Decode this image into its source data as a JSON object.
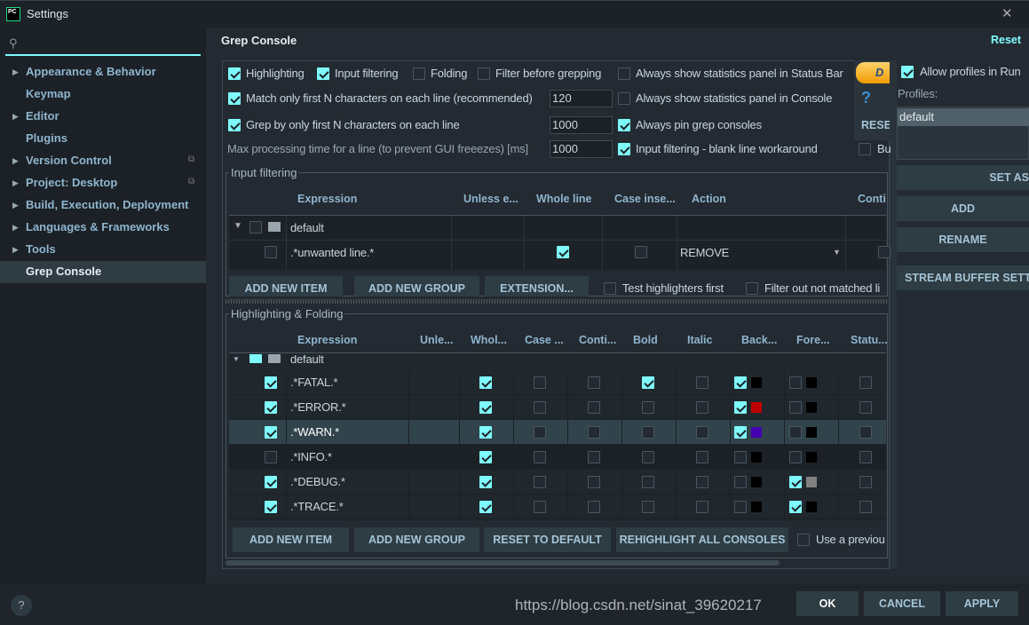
{
  "window": {
    "title": "Settings",
    "close": "✕"
  },
  "search": {
    "placeholder": ""
  },
  "sidebar": {
    "items": [
      {
        "label": "Appearance & Behavior",
        "arrow": true
      },
      {
        "label": "Keymap",
        "arrow": false
      },
      {
        "label": "Editor",
        "arrow": true
      },
      {
        "label": "Plugins",
        "arrow": false
      },
      {
        "label": "Version Control",
        "arrow": true,
        "copy": true
      },
      {
        "label": "Project: Desktop",
        "arrow": true,
        "copy": true
      },
      {
        "label": "Build, Execution, Deployment",
        "arrow": true
      },
      {
        "label": "Languages & Frameworks",
        "arrow": true
      },
      {
        "label": "Tools",
        "arrow": true
      },
      {
        "label": "Grep Console",
        "arrow": false,
        "selected": true
      }
    ]
  },
  "header": {
    "title": "Grep Console",
    "reset": "Reset"
  },
  "options": {
    "highlighting": "Highlighting",
    "input_filtering": "Input filtering",
    "folding": "Folding",
    "filter_before": "Filter before grepping",
    "stats_status": "Always show statistics panel in Status Bar",
    "match_first": "Match only first N characters on each line (recommended)",
    "match_value": "120",
    "stats_console": "Always show statistics panel in Console",
    "grep_first": "Grep by only first N characters on each line",
    "grep_value": "1000",
    "pin": "Always pin grep consoles",
    "max_time": "Max processing time for a line (to prevent GUI freeezes) [ms]",
    "max_value": "1000",
    "blank": "Input filtering - blank line workaround",
    "bu": "Bu",
    "donate": "D",
    "help": "?",
    "reset_small": "RESE"
  },
  "profiles": {
    "allow": "Allow profiles in Run",
    "label": "Profiles:",
    "items": [
      "default"
    ],
    "set_as": "SET AS",
    "add": "ADD",
    "rename": "RENAME",
    "stream": "STREAM BUFFER SETTI"
  },
  "input_filtering": {
    "title": "Input filtering",
    "columns": [
      "Expression",
      "Unless e...",
      "Whole line",
      "Case inse...",
      "Action",
      "Conti"
    ],
    "group": "default",
    "rows": [
      {
        "expression": ".*unwanted line.*",
        "enabled": false,
        "whole_line": true,
        "case": false,
        "action": "REMOVE"
      }
    ],
    "buttons": [
      "ADD NEW ITEM",
      "ADD NEW GROUP",
      "EXTENSION..."
    ],
    "test_first": "Test highlighters first",
    "filter_out": "Filter out not matched li"
  },
  "highlighting": {
    "title": "Highlighting & Folding",
    "columns": [
      "Expression",
      "Unle...",
      "Whol...",
      "Case ...",
      "Conti...",
      "Bold",
      "Italic",
      "Back...",
      "Fore...",
      "Statu..."
    ],
    "group": "default",
    "rows": [
      {
        "expression": ".*FATAL.*",
        "enabled": true,
        "whole": true,
        "case": false,
        "cont": false,
        "bold": true,
        "italic": false,
        "back": true,
        "back_color": "#000000",
        "fore": false,
        "fore_color": "#000000",
        "status": false
      },
      {
        "expression": ".*ERROR.*",
        "enabled": true,
        "whole": true,
        "case": false,
        "cont": false,
        "bold": false,
        "italic": false,
        "back": true,
        "back_color": "#c00000",
        "fore": false,
        "fore_color": "#000000",
        "status": false
      },
      {
        "expression": ".*WARN.*",
        "enabled": true,
        "whole": true,
        "case": false,
        "cont": false,
        "bold": false,
        "italic": false,
        "back": true,
        "back_color": "#4400b0",
        "fore": false,
        "fore_color": "#000000",
        "status": false,
        "selected": true
      },
      {
        "expression": ".*INFO.*",
        "enabled": false,
        "whole": true,
        "case": false,
        "cont": false,
        "bold": false,
        "italic": false,
        "back": false,
        "back_color": "#000000",
        "fore": false,
        "fore_color": "#000000",
        "status": false
      },
      {
        "expression": ".*DEBUG.*",
        "enabled": true,
        "whole": true,
        "case": false,
        "cont": false,
        "bold": false,
        "italic": false,
        "back": false,
        "back_color": "#000000",
        "fore": true,
        "fore_color": "#808080",
        "status": false
      },
      {
        "expression": ".*TRACE.*",
        "enabled": true,
        "whole": true,
        "case": false,
        "cont": false,
        "bold": false,
        "italic": false,
        "back": false,
        "back_color": "#000000",
        "fore": true,
        "fore_color": "#000000",
        "status": false
      }
    ],
    "buttons": [
      "ADD NEW ITEM",
      "ADD NEW GROUP",
      "RESET TO DEFAULT",
      "REHIGHLIGHT ALL CONSOLES"
    ],
    "use_previous": "Use a previou"
  },
  "footer": {
    "ok": "OK",
    "cancel": "CANCEL",
    "apply": "APPLY",
    "help": "?",
    "watermark": "https://blog.csdn.net/sinat_39620217"
  },
  "colors": {
    "accent": "#7ffcff",
    "button": "#2e3c43",
    "background": "#232a31"
  }
}
